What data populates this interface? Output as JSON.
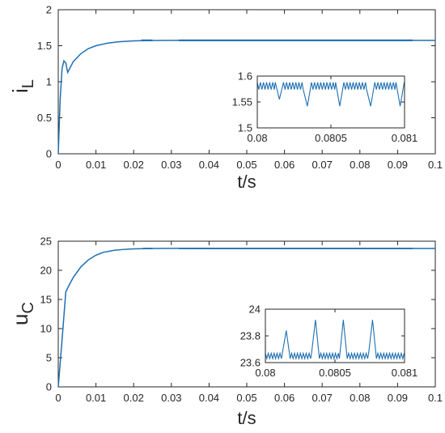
{
  "chart_data": [
    {
      "type": "line",
      "ylabel": "i",
      "ylabel_subscript": "L",
      "xlabel": "t/s",
      "xlim": [
        0,
        0.1
      ],
      "ylim": [
        0,
        2
      ],
      "xticks": [
        "0",
        "0.01",
        "0.02",
        "0.03",
        "0.04",
        "0.05",
        "0.06",
        "0.07",
        "0.08",
        "0.09",
        "0.1"
      ],
      "yticks": [
        "0",
        "0.5",
        "1",
        "1.5",
        "2"
      ],
      "color": "#1f6fb2",
      "series": [
        {
          "x": [
            0,
            0.0005,
            0.001,
            0.0015,
            0.002,
            0.0025,
            0.004,
            0.006,
            0.008,
            0.01,
            0.013,
            0.016,
            0.02,
            0.025,
            0.03,
            0.04,
            0.06,
            0.08,
            0.1
          ],
          "y": [
            0,
            0.75,
            1.18,
            1.29,
            1.26,
            1.13,
            1.28,
            1.39,
            1.46,
            1.5,
            1.535,
            1.555,
            1.568,
            1.573,
            1.575,
            1.575,
            1.575,
            1.575,
            1.575
          ]
        }
      ],
      "inset": {
        "xlim": [
          0.08,
          0.081
        ],
        "ylim": [
          1.5,
          1.6
        ],
        "xticks": [
          "0.08",
          "0.0805",
          "0.081"
        ],
        "yticks": [
          "1.5",
          "1.55",
          "1.6"
        ],
        "ripple_high": 1.588,
        "ripple_low": 1.574,
        "dip_times": [
          0.08015,
          0.08034,
          0.08056,
          0.08077,
          0.08097
        ],
        "dip_values": [
          1.555,
          1.542,
          1.542,
          1.542,
          1.542
        ]
      }
    },
    {
      "type": "line",
      "ylabel": "u",
      "ylabel_subscript": "C",
      "xlabel": "t/s",
      "xlim": [
        0,
        0.1
      ],
      "ylim": [
        0,
        25
      ],
      "xticks": [
        "0",
        "0.01",
        "0.02",
        "0.03",
        "0.04",
        "0.05",
        "0.06",
        "0.07",
        "0.08",
        "0.09",
        "0.1"
      ],
      "yticks": [
        "0",
        "5",
        "10",
        "15",
        "20",
        "25"
      ],
      "color": "#1f6fb2",
      "series": [
        {
          "x": [
            0,
            0.001,
            0.002,
            0.003,
            0.004,
            0.006,
            0.008,
            0.01,
            0.012,
            0.015,
            0.018,
            0.02,
            0.025,
            0.03,
            0.05,
            0.08,
            0.1
          ],
          "y": [
            0,
            8,
            16.3,
            17.6,
            18.8,
            20.6,
            21.8,
            22.6,
            23.1,
            23.45,
            23.62,
            23.68,
            23.75,
            23.76,
            23.75,
            23.75,
            23.75
          ]
        }
      ],
      "inset": {
        "xlim": [
          0.08,
          0.081
        ],
        "ylim": [
          23.6,
          24.0
        ],
        "xticks": [
          "0.08",
          "0.0805",
          "0.081"
        ],
        "yticks": [
          "23.6",
          "23.8",
          "24"
        ],
        "ripple_high": 23.67,
        "ripple_low": 23.63,
        "peak_times": [
          0.08015,
          0.08036,
          0.08056,
          0.08077
        ],
        "peak_values": [
          23.84,
          23.92,
          23.92,
          23.92
        ]
      }
    }
  ]
}
